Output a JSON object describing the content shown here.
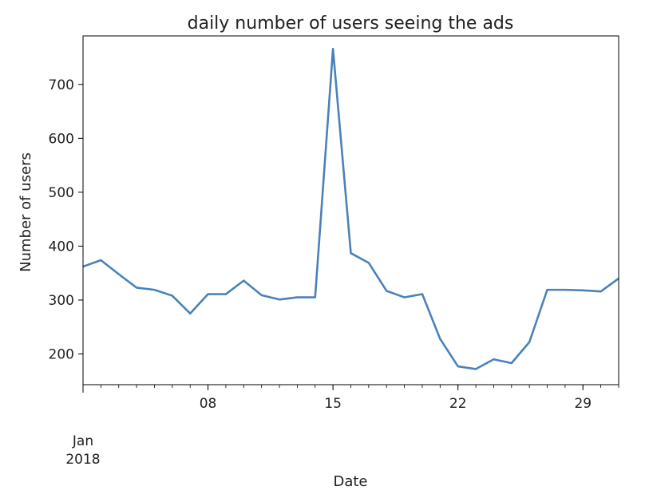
{
  "chart_data": {
    "type": "line",
    "title": "daily number of users seeing the ads",
    "xlabel": "Date",
    "ylabel": "Number of users",
    "x": [
      "2018-01-01",
      "2018-01-02",
      "2018-01-03",
      "2018-01-04",
      "2018-01-05",
      "2018-01-06",
      "2018-01-07",
      "2018-01-08",
      "2018-01-09",
      "2018-01-10",
      "2018-01-11",
      "2018-01-12",
      "2018-01-13",
      "2018-01-14",
      "2018-01-15",
      "2018-01-16",
      "2018-01-17",
      "2018-01-18",
      "2018-01-19",
      "2018-01-20",
      "2018-01-21",
      "2018-01-22",
      "2018-01-23",
      "2018-01-24",
      "2018-01-25",
      "2018-01-26",
      "2018-01-27",
      "2018-01-28",
      "2018-01-29",
      "2018-01-30",
      "2018-01-31"
    ],
    "values": [
      362,
      374,
      348,
      323,
      319,
      308,
      275,
      311,
      311,
      336,
      309,
      301,
      305,
      305,
      766,
      387,
      369,
      317,
      305,
      311,
      228,
      177,
      172,
      190,
      183,
      222,
      319,
      319,
      318,
      316,
      340
    ],
    "xlim": [
      "2018-01-01",
      "2018-01-31"
    ],
    "ylim": [
      143,
      790
    ],
    "x_ticks": [
      {
        "date": "2018-01-01",
        "label": "",
        "major": true
      },
      {
        "date": "2018-01-08",
        "label": "08",
        "major": false
      },
      {
        "date": "2018-01-15",
        "label": "15",
        "major": false
      },
      {
        "date": "2018-01-22",
        "label": "22",
        "major": false
      },
      {
        "date": "2018-01-29",
        "label": "29",
        "major": false
      }
    ],
    "x_major_label": {
      "month": "Jan",
      "year": "2018"
    },
    "y_ticks": [
      200,
      300,
      400,
      500,
      600,
      700
    ],
    "line_color": "#4a82b8",
    "grid": false
  }
}
